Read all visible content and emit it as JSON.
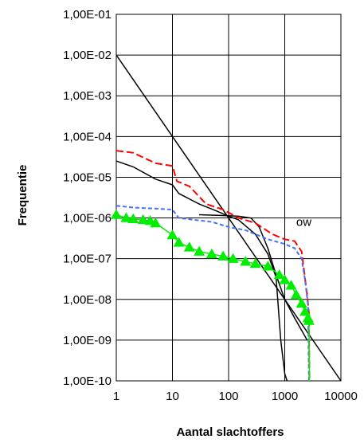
{
  "chart_data": {
    "type": "line",
    "xscale": "log",
    "yscale": "log",
    "xlim": [
      1,
      10000
    ],
    "ylim": [
      1e-10,
      0.1
    ],
    "grid": true,
    "xlabel": "Aantal slachtoffers",
    "ylabel": "Frequentie",
    "x_tick_values": [
      1,
      10,
      100,
      1000,
      10000
    ],
    "x_tick_labels": [
      "1",
      "10",
      "100",
      "1000",
      "10000"
    ],
    "y_tick_values": [
      1e-10,
      1e-09,
      1e-08,
      1e-07,
      1e-06,
      1e-05,
      0.0001,
      0.001,
      0.01,
      0.1
    ],
    "y_tick_labels": [
      "1,00E-10",
      "1,00E-09",
      "1,00E-08",
      "1,00E-07",
      "1,00E-06",
      "1,00E-05",
      "1,00E-04",
      "1,00E-03",
      "1,00E-02",
      "1,00E-01"
    ],
    "annotations": [
      {
        "text": "ow",
        "x": 1600,
        "y": 1e-06
      }
    ],
    "series": [
      {
        "style": "solid",
        "color": "#000000",
        "points": [
          [
            1,
            0.01
          ],
          [
            10000,
            1e-10
          ]
        ]
      },
      {
        "style": "solid",
        "color": "#000000",
        "points": [
          [
            1,
            2.5e-05
          ],
          [
            2,
            1.8e-05
          ],
          [
            5,
            9e-06
          ],
          [
            10,
            6.5e-06
          ],
          [
            13,
            4e-06
          ],
          [
            30,
            2.2e-06
          ],
          [
            60,
            1.5e-06
          ],
          [
            100,
            1.1e-06
          ],
          [
            150,
            9e-07
          ],
          [
            300,
            4e-07
          ],
          [
            500,
            1.3e-07
          ],
          [
            700,
            3.5e-08
          ],
          [
            850,
            1e-09
          ],
          [
            1000,
            1.5e-10
          ],
          [
            1100,
            1e-10
          ]
        ]
      },
      {
        "style": "solid",
        "color": "#000000",
        "points": [
          [
            30,
            1.2e-06
          ],
          [
            80,
            1.15e-06
          ],
          [
            150,
            1.1e-06
          ],
          [
            250,
            1e-06
          ],
          [
            350,
            6e-07
          ],
          [
            500,
            1.8e-07
          ],
          [
            700,
            4e-08
          ],
          [
            1000,
            1e-08
          ],
          [
            1500,
            3.5e-09
          ],
          [
            2500,
            1e-09
          ]
        ]
      },
      {
        "style": "dashed",
        "color": "#ff0000",
        "points": [
          [
            1,
            4.5e-05
          ],
          [
            2,
            4e-05
          ],
          [
            5,
            2.2e-05
          ],
          [
            10,
            1.9e-05
          ],
          [
            12,
            8e-06
          ],
          [
            20,
            6e-06
          ],
          [
            40,
            2.2e-06
          ],
          [
            80,
            1.6e-06
          ],
          [
            150,
            1e-06
          ],
          [
            300,
            7.5e-07
          ],
          [
            600,
            4e-07
          ],
          [
            1000,
            3e-07
          ],
          [
            1500,
            2.7e-07
          ],
          [
            2000,
            1.5e-07
          ],
          [
            2500,
            1.3e-08
          ],
          [
            2700,
            4.5e-09
          ],
          [
            2750,
            1e-10
          ]
        ]
      },
      {
        "style": "dashed",
        "color": "#4472ff",
        "points": [
          [
            1,
            2e-06
          ],
          [
            2,
            1.8e-06
          ],
          [
            5,
            1.7e-06
          ],
          [
            10,
            1.6e-06
          ],
          [
            13,
            1e-06
          ],
          [
            50,
            8e-07
          ],
          [
            100,
            6e-07
          ],
          [
            200,
            5e-07
          ],
          [
            500,
            3e-07
          ],
          [
            1000,
            2.3e-07
          ],
          [
            1500,
            1.8e-07
          ],
          [
            2000,
            1e-07
          ],
          [
            2300,
            3e-08
          ],
          [
            2600,
            7e-09
          ],
          [
            2700,
            1e-10
          ]
        ]
      },
      {
        "style": "solid",
        "color": "#00ee00",
        "marker": "triangle",
        "points": [
          [
            1,
            1.2e-06
          ],
          [
            1.5,
            1e-06
          ],
          [
            2,
            9.5e-07
          ],
          [
            3,
            9e-07
          ],
          [
            4,
            8.5e-07
          ],
          [
            5,
            7.5e-07
          ],
          [
            10,
            3.8e-07
          ],
          [
            13,
            2.5e-07
          ],
          [
            20,
            1.9e-07
          ],
          [
            30,
            1.5e-07
          ],
          [
            50,
            1.3e-07
          ],
          [
            80,
            1.15e-07
          ],
          [
            120,
            1e-07
          ],
          [
            200,
            8.5e-08
          ],
          [
            300,
            7.5e-08
          ],
          [
            500,
            6.5e-08
          ],
          [
            800,
            4e-08
          ],
          [
            1000,
            3e-08
          ],
          [
            1300,
            2.2e-08
          ],
          [
            1600,
            1.3e-08
          ],
          [
            2000,
            8e-09
          ],
          [
            2300,
            5e-09
          ],
          [
            2600,
            3.5e-09
          ],
          [
            2700,
            3e-09
          ],
          [
            2750,
            1e-10
          ]
        ]
      }
    ]
  }
}
